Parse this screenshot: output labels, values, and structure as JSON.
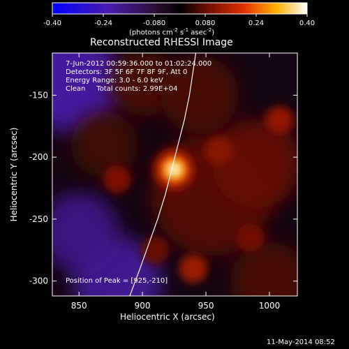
{
  "colorbar": {
    "ticks": [
      "-0.40",
      "-0.24",
      "-0.080",
      "0.080",
      "0.24",
      "0.40"
    ],
    "units_label": "(photons cm",
    "units_exp1": "-2",
    "units_mid": " s",
    "units_exp2": "-1",
    "units_end": " asec",
    "units_exp3": "-2",
    "units_close": ")"
  },
  "chart_data": {
    "type": "heatmap",
    "title": "Reconstructed RHESSI Image",
    "xlabel": "Heliocentric X (arcsec)",
    "ylabel": "Heliocentric Y (arcsec)",
    "xlim": [
      829,
      1022
    ],
    "ylim": [
      -312,
      -116
    ],
    "xticks": [
      850,
      900,
      950,
      1000
    ],
    "yticks": [
      -150,
      -200,
      -250,
      -300
    ],
    "color_range": [
      -0.4,
      0.4
    ],
    "colormap": "hot-diverging",
    "peak": {
      "x": 925,
      "y": -210,
      "value": 0.4
    },
    "secondary_sources": [
      {
        "x": 880,
        "y": -218,
        "value": 0.1
      },
      {
        "x": 960,
        "y": -195,
        "value": 0.11
      },
      {
        "x": 1008,
        "y": -170,
        "value": 0.12
      },
      {
        "x": 940,
        "y": -290,
        "value": 0.13
      },
      {
        "x": 985,
        "y": -265,
        "value": 0.09
      },
      {
        "x": 910,
        "y": -275,
        "value": 0.08
      }
    ],
    "limb": {
      "x": [
        890,
        898,
        905,
        912,
        918,
        923,
        928,
        933,
        937,
        942
      ],
      "y": [
        -312,
        -290,
        -270,
        -250,
        -230,
        -210,
        -190,
        -170,
        -150,
        -116
      ]
    },
    "annotations": [
      "7-Jun-2012 00:59:36.000 to 01:02:24.000",
      "Detectors: 3F 5F 6F 7F 8F 9F, Att 0",
      "Energy Range: 3.0 - 6.0 keV",
      "Clean     Total counts: 2.99E+04",
      "Position of Peak = [925,-210]"
    ]
  },
  "footer": {
    "timestamp": "11-May-2014 08:52"
  }
}
